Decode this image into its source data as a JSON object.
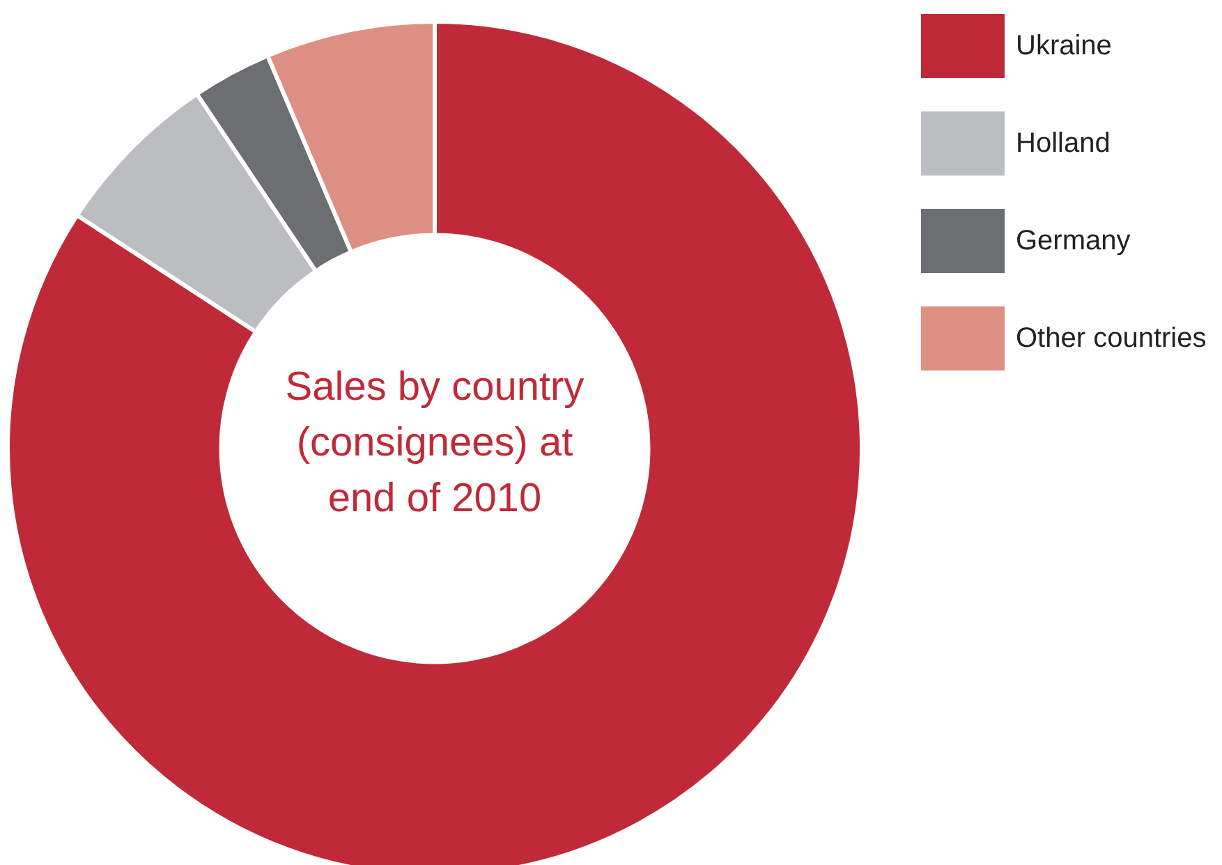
{
  "chart_data": {
    "type": "donut",
    "title": "Sales by country (consignees) at end of 2010",
    "categories": [
      "Ukraine",
      "Holland",
      "Germany",
      "Other countries"
    ],
    "values": [
      84.2,
      6.4,
      3.0,
      6.4
    ],
    "colors": [
      "#c02a38",
      "#bcbdc0",
      "#6d6e71",
      "#de8f84"
    ],
    "legend": "top right"
  }
}
